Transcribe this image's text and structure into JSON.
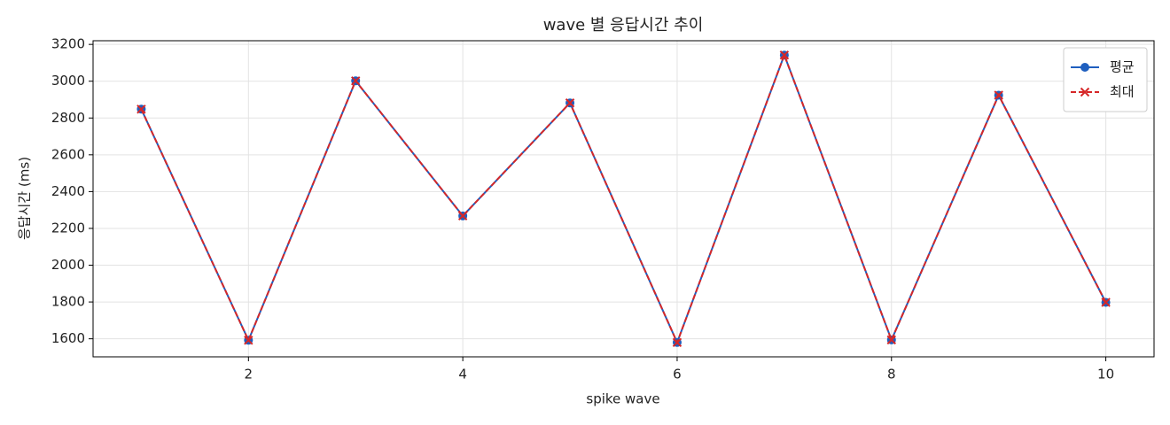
{
  "chart_data": {
    "type": "line",
    "title": "wave 별 응답시간 추이",
    "x_label": "spike wave",
    "y_label": "응답시간 (ms)",
    "x": [
      1,
      2,
      3,
      4,
      5,
      6,
      7,
      8,
      9,
      10
    ],
    "series": [
      {
        "name": "평균",
        "color": "#1f5fbf",
        "marker": "circle",
        "dash": false,
        "values": [
          2848,
          1592,
          3002,
          2268,
          2882,
          1580,
          3142,
          1594,
          2924,
          1798
        ]
      },
      {
        "name": "최대",
        "color": "#d62728",
        "marker": "x",
        "dash": true,
        "values": [
          2848,
          1592,
          3002,
          2268,
          2882,
          1580,
          3142,
          1594,
          2924,
          1798
        ]
      }
    ],
    "xlim": [
      0.55,
      10.45
    ],
    "xticks": [
      2,
      4,
      6,
      8,
      10
    ],
    "ylim": [
      1502,
      3220
    ],
    "yticks": [
      1600,
      1800,
      2000,
      2200,
      2400,
      2600,
      2800,
      3000,
      3200
    ],
    "grid": true,
    "legend": "upper-right"
  }
}
